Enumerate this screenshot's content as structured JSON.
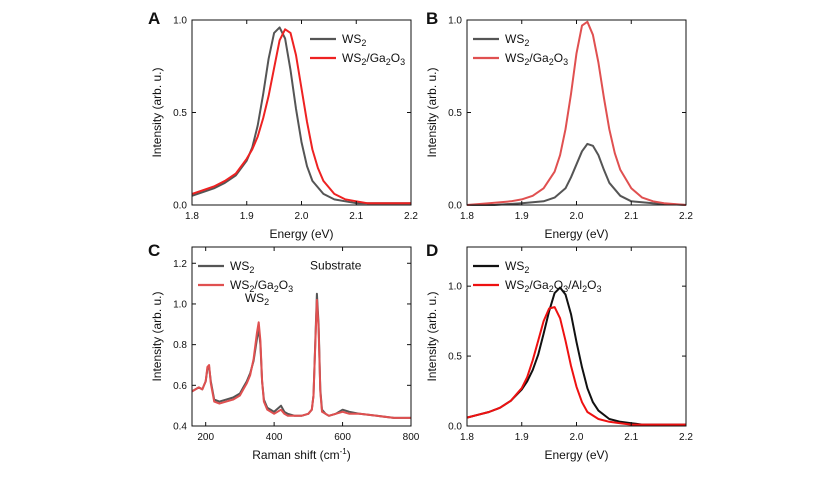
{
  "figure": {
    "background": "#ffffff"
  },
  "chart_data": [
    {
      "panel": "A",
      "type": "line",
      "xlabel": "Energy (eV)",
      "ylabel": "Intensity (arb. u.)",
      "xlim": [
        1.8,
        2.2
      ],
      "ylim": [
        0.0,
        1.0
      ],
      "xticks": [
        1.8,
        1.9,
        2.0,
        2.1,
        2.2
      ],
      "xtick_labels": [
        "1.8",
        "1.9",
        "2.0",
        "2.1",
        "2.2"
      ],
      "yticks": [
        0.0,
        0.5,
        1.0
      ],
      "ytick_labels": [
        "0.0",
        "0.5",
        "1.0"
      ],
      "legend": {
        "position": "top-right",
        "entries": [
          {
            "base": "WS",
            "sub": "2",
            "rest": []
          },
          {
            "base": "WS",
            "sub": "2",
            "rest": [
              [
                "/Ga",
                "2"
              ],
              [
                "O",
                "3"
              ]
            ]
          }
        ]
      },
      "series": [
        {
          "name": "WS2",
          "color": "#555555",
          "x": [
            1.8,
            1.82,
            1.84,
            1.86,
            1.88,
            1.9,
            1.91,
            1.92,
            1.93,
            1.94,
            1.95,
            1.96,
            1.97,
            1.98,
            1.99,
            2.0,
            2.01,
            2.02,
            2.04,
            2.06,
            2.08,
            2.1,
            2.12,
            2.15,
            2.18,
            2.2
          ],
          "y": [
            0.05,
            0.07,
            0.09,
            0.12,
            0.16,
            0.24,
            0.31,
            0.43,
            0.6,
            0.79,
            0.93,
            0.96,
            0.9,
            0.73,
            0.52,
            0.34,
            0.21,
            0.13,
            0.06,
            0.03,
            0.02,
            0.01,
            0.01,
            0.01,
            0.01,
            0.01
          ]
        },
        {
          "name": "WS2/Ga2O3",
          "color": "#ee2222",
          "x": [
            1.8,
            1.82,
            1.84,
            1.86,
            1.88,
            1.9,
            1.91,
            1.92,
            1.93,
            1.94,
            1.95,
            1.96,
            1.97,
            1.98,
            1.99,
            2.0,
            2.01,
            2.02,
            2.03,
            2.04,
            2.06,
            2.08,
            2.1,
            2.12,
            2.15,
            2.18,
            2.2
          ],
          "y": [
            0.06,
            0.08,
            0.1,
            0.13,
            0.17,
            0.25,
            0.3,
            0.37,
            0.47,
            0.59,
            0.74,
            0.89,
            0.95,
            0.93,
            0.81,
            0.63,
            0.45,
            0.3,
            0.2,
            0.13,
            0.06,
            0.03,
            0.02,
            0.01,
            0.01,
            0.01,
            0.01
          ]
        }
      ]
    },
    {
      "panel": "B",
      "type": "line",
      "xlabel": "Energy (eV)",
      "ylabel": "Intensity (arb. u.)",
      "xlim": [
        1.8,
        2.2
      ],
      "ylim": [
        0.0,
        1.0
      ],
      "xticks": [
        1.8,
        1.9,
        2.0,
        2.1,
        2.2
      ],
      "xtick_labels": [
        "1.8",
        "1.9",
        "2.0",
        "2.1",
        "2.2"
      ],
      "yticks": [
        0.0,
        0.5,
        1.0
      ],
      "ytick_labels": [
        "0.0",
        "0.5",
        "1.0"
      ],
      "legend": {
        "position": "top-left",
        "entries": [
          {
            "base": "WS",
            "sub": "2",
            "rest": []
          },
          {
            "base": "WS",
            "sub": "2",
            "rest": [
              [
                "/Ga",
                "2"
              ],
              [
                "O",
                "3"
              ]
            ]
          }
        ]
      },
      "series": [
        {
          "name": "WS2",
          "color": "#555555",
          "x": [
            1.8,
            1.85,
            1.9,
            1.94,
            1.96,
            1.98,
            1.99,
            2.0,
            2.01,
            2.02,
            2.03,
            2.04,
            2.05,
            2.06,
            2.08,
            2.1,
            2.14,
            2.2
          ],
          "y": [
            0.0,
            0.0,
            0.01,
            0.02,
            0.04,
            0.09,
            0.15,
            0.22,
            0.29,
            0.33,
            0.32,
            0.27,
            0.19,
            0.12,
            0.05,
            0.02,
            0.01,
            0.0
          ]
        },
        {
          "name": "WS2/Ga2O3",
          "color": "#e05050",
          "x": [
            1.8,
            1.84,
            1.88,
            1.9,
            1.92,
            1.94,
            1.96,
            1.97,
            1.98,
            1.99,
            2.0,
            2.01,
            2.02,
            2.03,
            2.04,
            2.05,
            2.06,
            2.07,
            2.08,
            2.1,
            2.12,
            2.14,
            2.16,
            2.2
          ],
          "y": [
            0.0,
            0.01,
            0.02,
            0.03,
            0.05,
            0.09,
            0.18,
            0.27,
            0.41,
            0.6,
            0.82,
            0.97,
            0.99,
            0.92,
            0.77,
            0.58,
            0.41,
            0.28,
            0.19,
            0.09,
            0.04,
            0.02,
            0.01,
            0.0
          ]
        }
      ]
    },
    {
      "panel": "C",
      "type": "line",
      "xlabel": "Raman shift (cm",
      "xlabel_sup": "-1",
      "xlabel_tail": ")",
      "ylabel": "Intensity (arb. u.)",
      "xlim": [
        160,
        800
      ],
      "ylim": [
        0.4,
        1.28
      ],
      "xticks": [
        200,
        400,
        600,
        800
      ],
      "xtick_labels": [
        "200",
        "400",
        "600",
        "800"
      ],
      "yticks": [
        0.4,
        0.6,
        0.8,
        1.0,
        1.2
      ],
      "ytick_labels": [
        "0.4",
        "0.6",
        "0.8",
        "1.0",
        "1.2"
      ],
      "legend": {
        "position": "top-left",
        "entries": [
          {
            "base": "WS",
            "sub": "2",
            "rest": []
          },
          {
            "base": "WS",
            "sub": "2",
            "rest": [
              [
                "/Ga",
                "2"
              ],
              [
                "O",
                "3"
              ]
            ]
          }
        ]
      },
      "annotations": [
        {
          "text": "Substrate",
          "x": 580,
          "y": 1.17
        },
        {
          "text": "WS",
          "sub": "2",
          "x": 350,
          "y": 1.01
        }
      ],
      "series": [
        {
          "name": "WS2",
          "color": "#555555",
          "x": [
            160,
            180,
            190,
            200,
            205,
            210,
            215,
            225,
            240,
            260,
            280,
            300,
            310,
            320,
            330,
            340,
            350,
            355,
            360,
            365,
            370,
            380,
            400,
            420,
            430,
            440,
            460,
            480,
            500,
            510,
            515,
            520,
            525,
            530,
            535,
            540,
            550,
            560,
            580,
            600,
            620,
            650,
            700,
            750,
            800
          ],
          "y": [
            0.57,
            0.59,
            0.58,
            0.62,
            0.68,
            0.69,
            0.62,
            0.53,
            0.52,
            0.53,
            0.54,
            0.56,
            0.59,
            0.62,
            0.66,
            0.72,
            0.83,
            0.88,
            0.8,
            0.62,
            0.53,
            0.49,
            0.47,
            0.5,
            0.47,
            0.46,
            0.45,
            0.45,
            0.46,
            0.48,
            0.55,
            0.8,
            1.05,
            0.9,
            0.58,
            0.48,
            0.46,
            0.45,
            0.46,
            0.48,
            0.47,
            0.46,
            0.45,
            0.44,
            0.44
          ]
        },
        {
          "name": "WS2/Ga2O3",
          "color": "#e05050",
          "x": [
            160,
            180,
            190,
            200,
            205,
            210,
            215,
            225,
            240,
            260,
            280,
            300,
            310,
            320,
            330,
            340,
            350,
            355,
            360,
            365,
            370,
            380,
            400,
            420,
            430,
            440,
            460,
            480,
            500,
            510,
            515,
            520,
            525,
            530,
            535,
            540,
            550,
            560,
            580,
            600,
            620,
            650,
            700,
            750,
            800
          ],
          "y": [
            0.57,
            0.59,
            0.58,
            0.62,
            0.69,
            0.7,
            0.61,
            0.52,
            0.51,
            0.52,
            0.53,
            0.55,
            0.58,
            0.61,
            0.65,
            0.73,
            0.86,
            0.91,
            0.82,
            0.62,
            0.52,
            0.48,
            0.46,
            0.48,
            0.46,
            0.45,
            0.45,
            0.45,
            0.46,
            0.48,
            0.55,
            0.79,
            1.02,
            0.88,
            0.57,
            0.47,
            0.46,
            0.45,
            0.46,
            0.47,
            0.46,
            0.46,
            0.45,
            0.44,
            0.44
          ]
        }
      ]
    },
    {
      "panel": "D",
      "type": "line",
      "xlabel": "Energy (eV)",
      "ylabel": "Intensity (arb. u.)",
      "xlim": [
        1.8,
        2.2
      ],
      "ylim": [
        0.0,
        1.28
      ],
      "xticks": [
        1.8,
        1.9,
        2.0,
        2.1,
        2.2
      ],
      "xtick_labels": [
        "1.8",
        "1.9",
        "2.0",
        "2.1",
        "2.2"
      ],
      "yticks": [
        0.0,
        0.5,
        1.0
      ],
      "ytick_labels": [
        "0.0",
        "0.5",
        "1.0"
      ],
      "legend": {
        "position": "top-left",
        "entries": [
          {
            "base": "WS",
            "sub": "2",
            "rest": []
          },
          {
            "base": "WS",
            "sub": "2",
            "rest": [
              [
                "/Ga",
                "2"
              ],
              [
                "O",
                "3"
              ],
              [
                "/Al",
                "2"
              ],
              [
                "O",
                "3"
              ]
            ]
          }
        ]
      },
      "series": [
        {
          "name": "WS2",
          "color": "#111111",
          "x": [
            1.8,
            1.82,
            1.84,
            1.86,
            1.88,
            1.9,
            1.91,
            1.92,
            1.93,
            1.94,
            1.95,
            1.96,
            1.97,
            1.98,
            1.99,
            2.0,
            2.01,
            2.02,
            2.03,
            2.04,
            2.06,
            2.08,
            2.1,
            2.12,
            2.15,
            2.2
          ],
          "y": [
            0.06,
            0.08,
            0.1,
            0.13,
            0.18,
            0.26,
            0.32,
            0.4,
            0.51,
            0.66,
            0.82,
            0.95,
            0.99,
            0.94,
            0.8,
            0.6,
            0.42,
            0.27,
            0.17,
            0.11,
            0.05,
            0.03,
            0.02,
            0.01,
            0.01,
            0.01
          ]
        },
        {
          "name": "WS2/Ga2O3/Al2O3",
          "color": "#ee1111",
          "x": [
            1.8,
            1.82,
            1.84,
            1.86,
            1.88,
            1.9,
            1.91,
            1.92,
            1.93,
            1.94,
            1.95,
            1.96,
            1.97,
            1.98,
            1.99,
            2.0,
            2.01,
            2.02,
            2.04,
            2.06,
            2.08,
            2.1,
            2.12,
            2.15,
            2.2
          ],
          "y": [
            0.06,
            0.08,
            0.1,
            0.13,
            0.18,
            0.27,
            0.35,
            0.47,
            0.61,
            0.75,
            0.84,
            0.85,
            0.77,
            0.61,
            0.43,
            0.28,
            0.17,
            0.1,
            0.05,
            0.03,
            0.02,
            0.01,
            0.01,
            0.01,
            0.01
          ]
        }
      ]
    }
  ]
}
